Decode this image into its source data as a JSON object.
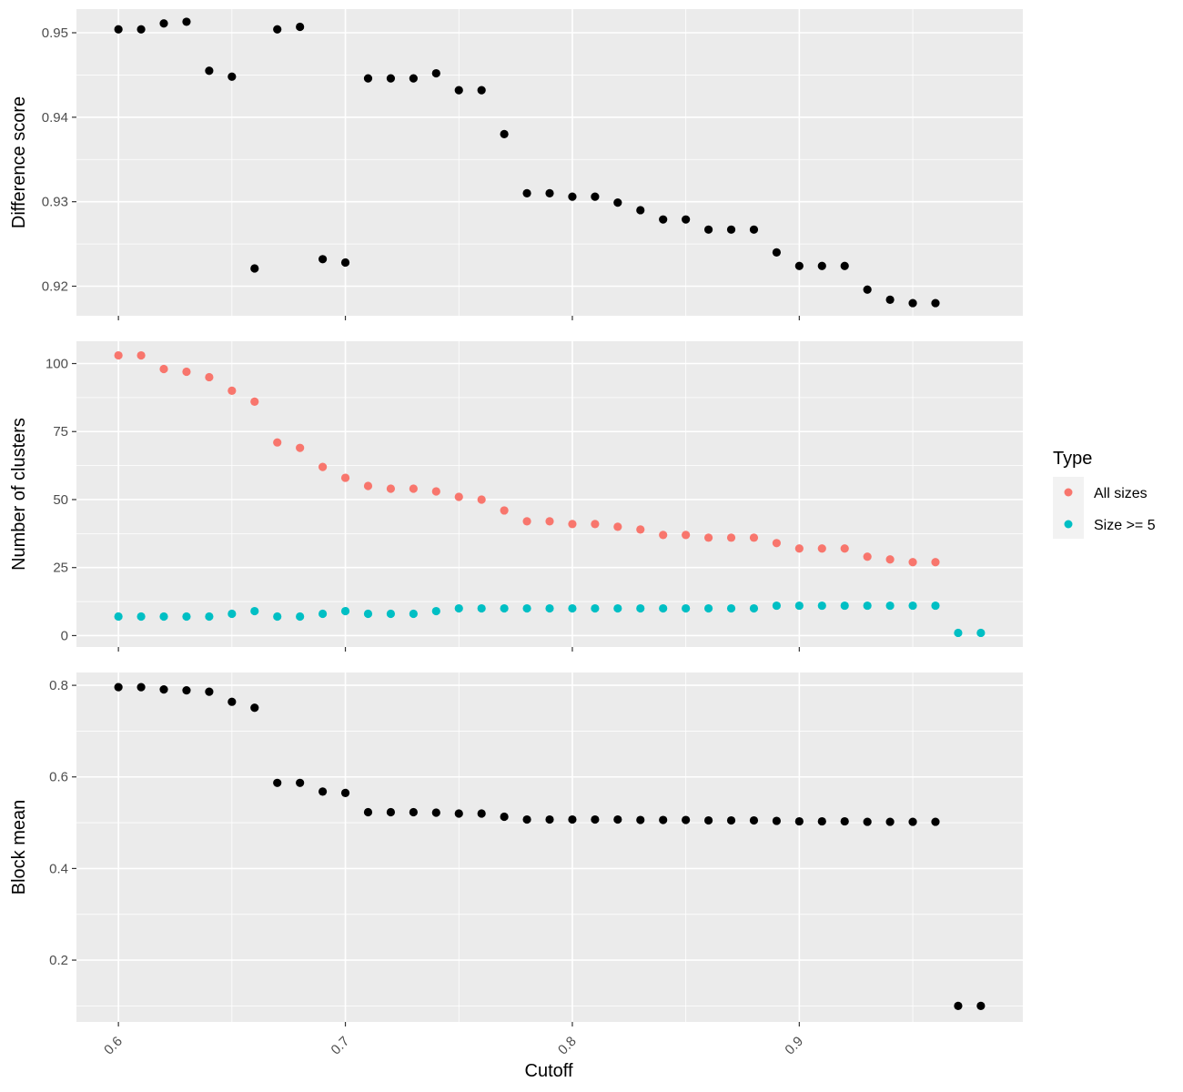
{
  "chart_data": [
    {
      "type": "scatter",
      "panel": "top",
      "ylabel": "Difference score",
      "ylim": [
        0.9165,
        0.9528
      ],
      "yticks": [
        0.92,
        0.93,
        0.94,
        0.95
      ],
      "ytick_labels": [
        "0.92",
        "0.93",
        "0.94",
        "0.95"
      ],
      "series": [
        {
          "color": "#000000",
          "x": [
            0.6,
            0.61,
            0.62,
            0.63,
            0.64,
            0.65,
            0.66,
            0.67,
            0.68,
            0.69,
            0.7,
            0.71,
            0.72,
            0.73,
            0.74,
            0.75,
            0.76,
            0.77,
            0.78,
            0.79,
            0.8,
            0.81,
            0.82,
            0.83,
            0.84,
            0.85,
            0.86,
            0.87,
            0.88,
            0.89,
            0.9,
            0.91,
            0.92,
            0.93,
            0.94,
            0.95,
            0.96
          ],
          "y": [
            0.9504,
            0.9504,
            0.9511,
            0.9513,
            0.9455,
            0.9448,
            0.9221,
            0.9504,
            0.9507,
            0.9232,
            0.9228,
            0.9446,
            0.9446,
            0.9446,
            0.9452,
            0.9432,
            0.9432,
            0.938,
            0.931,
            0.931,
            0.9306,
            0.9306,
            0.9299,
            0.929,
            0.9279,
            0.9279,
            0.9267,
            0.9267,
            0.9267,
            0.924,
            0.9224,
            0.9224,
            0.9224,
            0.9196,
            0.9184,
            0.918,
            0.918
          ]
        }
      ]
    },
    {
      "type": "scatter",
      "panel": "middle",
      "ylabel": "Number of clusters",
      "ylim": [
        -4.2,
        108.2
      ],
      "yticks": [
        0,
        25,
        50,
        75,
        100
      ],
      "ytick_labels": [
        "0",
        "25",
        "50",
        "75",
        "100"
      ],
      "series": [
        {
          "name": "All sizes",
          "color": "#F8766D",
          "x": [
            0.6,
            0.61,
            0.62,
            0.63,
            0.64,
            0.65,
            0.66,
            0.67,
            0.68,
            0.69,
            0.7,
            0.71,
            0.72,
            0.73,
            0.74,
            0.75,
            0.76,
            0.77,
            0.78,
            0.79,
            0.8,
            0.81,
            0.82,
            0.83,
            0.84,
            0.85,
            0.86,
            0.87,
            0.88,
            0.89,
            0.9,
            0.91,
            0.92,
            0.93,
            0.94,
            0.95,
            0.96
          ],
          "y": [
            103,
            103,
            98,
            97,
            95,
            90,
            86,
            71,
            69,
            62,
            58,
            55,
            54,
            54,
            53,
            51,
            50,
            46,
            42,
            42,
            41,
            41,
            40,
            39,
            37,
            37,
            36,
            36,
            36,
            34,
            32,
            32,
            32,
            29,
            28,
            27,
            27
          ]
        },
        {
          "name": "Size >= 5",
          "color": "#00BFC4",
          "x": [
            0.6,
            0.61,
            0.62,
            0.63,
            0.64,
            0.65,
            0.66,
            0.67,
            0.68,
            0.69,
            0.7,
            0.71,
            0.72,
            0.73,
            0.74,
            0.75,
            0.76,
            0.77,
            0.78,
            0.79,
            0.8,
            0.81,
            0.82,
            0.83,
            0.84,
            0.85,
            0.86,
            0.87,
            0.88,
            0.89,
            0.9,
            0.91,
            0.92,
            0.93,
            0.94,
            0.95,
            0.96,
            0.97,
            0.98
          ],
          "y": [
            7,
            7,
            7,
            7,
            7,
            8,
            9,
            7,
            7,
            8,
            9,
            8,
            8,
            8,
            9,
            10,
            10,
            10,
            10,
            10,
            10,
            10,
            10,
            10,
            10,
            10,
            10,
            10,
            10,
            11,
            11,
            11,
            11,
            11,
            11,
            11,
            11,
            1,
            1
          ]
        }
      ]
    },
    {
      "type": "scatter",
      "panel": "bottom",
      "ylabel": "Block mean",
      "ylim": [
        0.065,
        0.828
      ],
      "yticks": [
        0.2,
        0.4,
        0.6,
        0.8
      ],
      "ytick_labels": [
        "0.2",
        "0.4",
        "0.6",
        "0.8"
      ],
      "series": [
        {
          "color": "#000000",
          "x": [
            0.6,
            0.61,
            0.62,
            0.63,
            0.64,
            0.65,
            0.66,
            0.67,
            0.68,
            0.69,
            0.7,
            0.71,
            0.72,
            0.73,
            0.74,
            0.75,
            0.76,
            0.77,
            0.78,
            0.79,
            0.8,
            0.81,
            0.82,
            0.83,
            0.84,
            0.85,
            0.86,
            0.87,
            0.88,
            0.89,
            0.9,
            0.91,
            0.92,
            0.93,
            0.94,
            0.95,
            0.96,
            0.97,
            0.98
          ],
          "y": [
            0.796,
            0.796,
            0.791,
            0.789,
            0.786,
            0.764,
            0.751,
            0.587,
            0.587,
            0.568,
            0.565,
            0.523,
            0.523,
            0.523,
            0.522,
            0.52,
            0.52,
            0.513,
            0.507,
            0.507,
            0.507,
            0.507,
            0.507,
            0.506,
            0.506,
            0.506,
            0.505,
            0.505,
            0.505,
            0.504,
            0.503,
            0.503,
            0.503,
            0.502,
            0.502,
            0.502,
            0.502,
            0.1,
            0.1
          ]
        }
      ]
    }
  ],
  "x_axis": {
    "label": "Cutoff",
    "xlim": [
      0.5815,
      0.9985
    ],
    "ticks": [
      0.6,
      0.7,
      0.8,
      0.9
    ],
    "tick_labels": [
      "0.6",
      "0.7",
      "0.8",
      "0.9"
    ]
  },
  "legend": {
    "title": "Type",
    "position": "right",
    "entries": [
      {
        "label": "All sizes",
        "color": "#F8766D"
      },
      {
        "label": "Size >= 5",
        "color": "#00BFC4"
      }
    ]
  },
  "style": {
    "panel_background": "#EBEBEB",
    "grid_major": "#FFFFFF",
    "tick_color": "#333333"
  }
}
